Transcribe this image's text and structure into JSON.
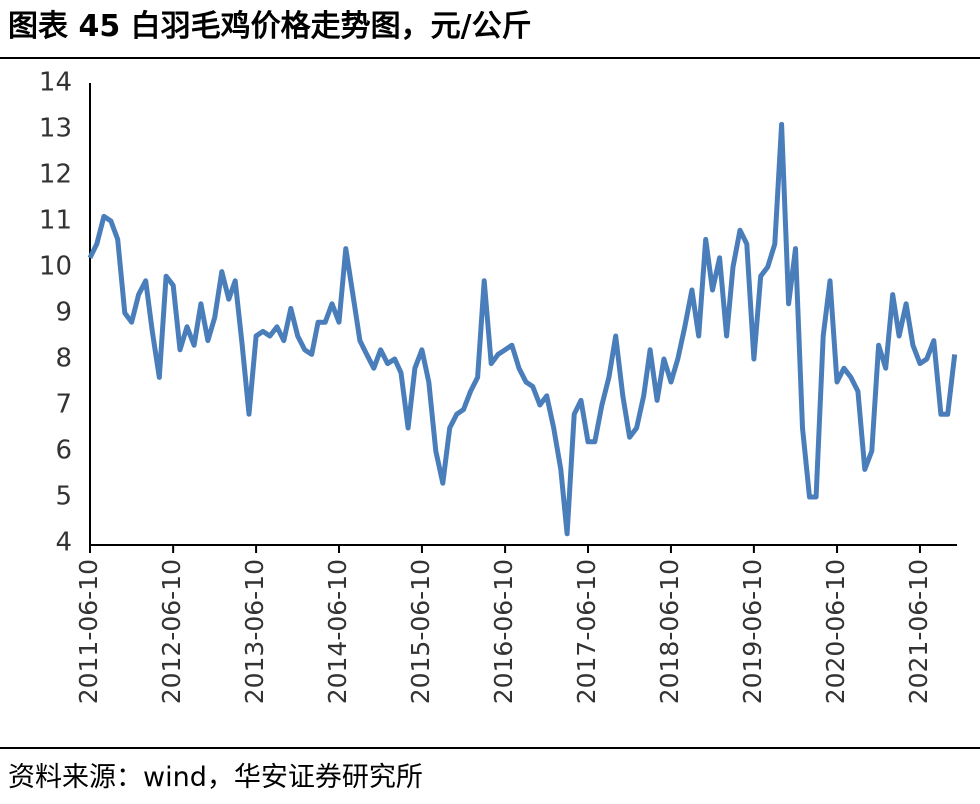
{
  "chart_data": {
    "type": "line",
    "title": "图表 45 白羽毛鸡价格走势图，元/公斤",
    "source": "资料来源：wind，华安证券研究所",
    "x": [
      "2011-06-10",
      "2011-07-10",
      "2011-08-10",
      "2011-09-10",
      "2011-10-10",
      "2011-11-10",
      "2011-12-10",
      "2012-01-10",
      "2012-02-10",
      "2012-03-10",
      "2012-04-10",
      "2012-05-10",
      "2012-06-10",
      "2012-07-10",
      "2012-08-10",
      "2012-09-10",
      "2012-10-10",
      "2012-11-10",
      "2012-12-10",
      "2013-01-10",
      "2013-02-10",
      "2013-03-10",
      "2013-04-10",
      "2013-05-10",
      "2013-06-10",
      "2013-07-10",
      "2013-08-10",
      "2013-09-10",
      "2013-10-10",
      "2013-11-10",
      "2013-12-10",
      "2014-01-10",
      "2014-02-10",
      "2014-03-10",
      "2014-04-10",
      "2014-05-10",
      "2014-06-10",
      "2014-07-10",
      "2014-08-10",
      "2014-09-10",
      "2014-10-10",
      "2014-11-10",
      "2014-12-10",
      "2015-01-10",
      "2015-02-10",
      "2015-03-10",
      "2015-04-10",
      "2015-05-10",
      "2015-06-10",
      "2015-07-10",
      "2015-08-10",
      "2015-09-10",
      "2015-10-10",
      "2015-11-10",
      "2015-12-10",
      "2016-01-10",
      "2016-02-10",
      "2016-03-10",
      "2016-04-10",
      "2016-05-10",
      "2016-06-10",
      "2016-07-10",
      "2016-08-10",
      "2016-09-10",
      "2016-10-10",
      "2016-11-10",
      "2016-12-10",
      "2017-01-10",
      "2017-02-10",
      "2017-03-10",
      "2017-04-10",
      "2017-05-10",
      "2017-06-10",
      "2017-07-10",
      "2017-08-10",
      "2017-09-10",
      "2017-10-10",
      "2017-11-10",
      "2017-12-10",
      "2018-01-10",
      "2018-02-10",
      "2018-03-10",
      "2018-04-10",
      "2018-05-10",
      "2018-06-10",
      "2018-07-10",
      "2018-08-10",
      "2018-09-10",
      "2018-10-10",
      "2018-11-10",
      "2018-12-10",
      "2019-01-10",
      "2019-02-10",
      "2019-03-10",
      "2019-04-10",
      "2019-05-10",
      "2019-06-10",
      "2019-07-10",
      "2019-08-10",
      "2019-09-10",
      "2019-10-10",
      "2019-11-10",
      "2019-12-10",
      "2020-01-10",
      "2020-02-10",
      "2020-03-10",
      "2020-04-10",
      "2020-05-10",
      "2020-06-10",
      "2020-07-10",
      "2020-08-10",
      "2020-09-10",
      "2020-10-10",
      "2020-11-10",
      "2020-12-10",
      "2021-01-10",
      "2021-02-10",
      "2021-03-10",
      "2021-04-10",
      "2021-05-10",
      "2021-06-10",
      "2021-07-10",
      "2021-08-10",
      "2021-09-10",
      "2021-10-10",
      "2021-11-10"
    ],
    "series": [
      {
        "color": "#4a7ebb",
        "values": [
          10.2,
          10.5,
          11.1,
          11.0,
          10.6,
          9.0,
          8.8,
          9.4,
          9.7,
          8.6,
          7.6,
          9.8,
          9.6,
          8.2,
          8.7,
          8.3,
          9.2,
          8.4,
          8.9,
          9.9,
          9.3,
          9.7,
          8.3,
          6.8,
          8.5,
          8.6,
          8.5,
          8.7,
          8.4,
          9.1,
          8.5,
          8.2,
          8.1,
          8.8,
          8.8,
          9.2,
          8.8,
          10.4,
          9.4,
          8.4,
          8.1,
          7.8,
          8.2,
          7.9,
          8.0,
          7.7,
          6.5,
          7.8,
          8.2,
          7.5,
          6.0,
          5.3,
          6.5,
          6.8,
          6.9,
          7.3,
          7.6,
          9.7,
          7.9,
          8.1,
          8.2,
          8.3,
          7.8,
          7.5,
          7.4,
          7.0,
          7.2,
          6.5,
          5.6,
          4.2,
          6.8,
          7.1,
          6.2,
          6.2,
          7.0,
          7.6,
          8.5,
          7.2,
          6.3,
          6.5,
          7.2,
          8.2,
          7.1,
          8.0,
          7.5,
          8.0,
          8.7,
          9.5,
          8.5,
          10.6,
          9.5,
          10.2,
          8.5,
          10.0,
          10.8,
          10.5,
          8.0,
          9.8,
          10.0,
          10.5,
          13.1,
          9.2,
          10.4,
          6.5,
          5.0,
          5.0,
          8.5,
          9.7,
          7.5,
          7.8,
          7.6,
          7.3,
          5.6,
          6.0,
          8.3,
          7.8,
          9.4,
          8.5,
          9.2,
          8.3,
          7.9,
          8.0,
          8.4,
          6.8,
          6.8,
          8.1
        ]
      }
    ],
    "xlim": [
      "2011-06-10",
      "2021-11-20"
    ],
    "xticks": [
      "2011-06-10",
      "2012-06-10",
      "2013-06-10",
      "2014-06-10",
      "2015-06-10",
      "2016-06-10",
      "2017-06-10",
      "2018-06-10",
      "2019-06-10",
      "2020-06-10",
      "2021-06-10"
    ],
    "ylim": [
      4,
      14
    ],
    "yticks": [
      4,
      5,
      6,
      7,
      8,
      9,
      10,
      11,
      12,
      13,
      14
    ],
    "grid": false
  }
}
